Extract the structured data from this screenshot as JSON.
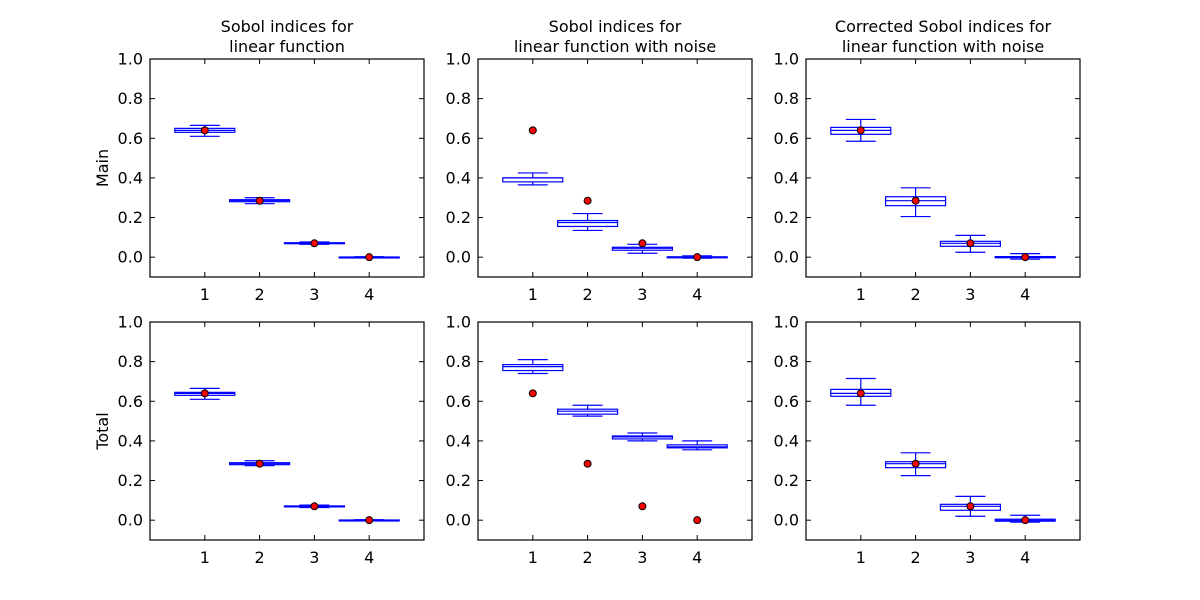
{
  "colors": {
    "box": "#0000ff",
    "truth_fill": "#ff0000",
    "truth_stroke": "#000000",
    "axes": "#000000"
  },
  "columns": [
    {
      "title_lines": [
        "Sobol indices for",
        "linear function"
      ]
    },
    {
      "title_lines": [
        "Sobol indices for",
        "linear function with noise"
      ]
    },
    {
      "title_lines": [
        "Corrected Sobol indices for",
        "linear function with noise"
      ]
    }
  ],
  "rows": [
    {
      "ylabel": "Main"
    },
    {
      "ylabel": "Total"
    }
  ],
  "chart_data": [
    {
      "type": "box",
      "row": 0,
      "col": 0,
      "title": "Sobol indices for\nlinear function",
      "ylabel": "Main",
      "categories": [
        "1",
        "2",
        "3",
        "4"
      ],
      "ylim": [
        -0.1,
        1.0
      ],
      "yticks": [
        "0.0",
        "0.2",
        "0.4",
        "0.6",
        "0.8",
        "1.0"
      ],
      "boxes": [
        {
          "whislo": 0.61,
          "q1": 0.63,
          "med": 0.64,
          "q3": 0.65,
          "whishi": 0.665
        },
        {
          "whislo": 0.27,
          "q1": 0.28,
          "med": 0.285,
          "q3": 0.29,
          "whishi": 0.3
        },
        {
          "whislo": 0.065,
          "q1": 0.068,
          "med": 0.07,
          "q3": 0.073,
          "whishi": 0.077
        },
        {
          "whislo": -0.002,
          "q1": -0.001,
          "med": 0.0,
          "q3": 0.001,
          "whishi": 0.002
        }
      ],
      "true_values": [
        0.64,
        0.285,
        0.07,
        0.0
      ]
    },
    {
      "type": "box",
      "row": 0,
      "col": 1,
      "title": "Sobol indices for\nlinear function with noise",
      "ylabel": "",
      "categories": [
        "1",
        "2",
        "3",
        "4"
      ],
      "ylim": [
        -0.1,
        1.0
      ],
      "yticks": [
        "0.0",
        "0.2",
        "0.4",
        "0.6",
        "0.8",
        "1.0"
      ],
      "boxes": [
        {
          "whislo": 0.365,
          "q1": 0.38,
          "med": 0.4,
          "q3": 0.4,
          "whishi": 0.425
        },
        {
          "whislo": 0.135,
          "q1": 0.155,
          "med": 0.175,
          "q3": 0.185,
          "whishi": 0.22
        },
        {
          "whislo": 0.02,
          "q1": 0.035,
          "med": 0.045,
          "q3": 0.05,
          "whishi": 0.065
        },
        {
          "whislo": -0.005,
          "q1": -0.002,
          "med": 0.0,
          "q3": 0.002,
          "whishi": 0.007
        }
      ],
      "true_values": [
        0.64,
        0.285,
        0.07,
        0.0
      ]
    },
    {
      "type": "box",
      "row": 0,
      "col": 2,
      "title": "Corrected Sobol indices for\nlinear function with noise",
      "ylabel": "",
      "categories": [
        "1",
        "2",
        "3",
        "4"
      ],
      "ylim": [
        -0.1,
        1.0
      ],
      "yticks": [
        "0.0",
        "0.2",
        "0.4",
        "0.6",
        "0.8",
        "1.0"
      ],
      "boxes": [
        {
          "whislo": 0.585,
          "q1": 0.62,
          "med": 0.64,
          "q3": 0.655,
          "whishi": 0.695
        },
        {
          "whislo": 0.205,
          "q1": 0.26,
          "med": 0.285,
          "q3": 0.305,
          "whishi": 0.35
        },
        {
          "whislo": 0.025,
          "q1": 0.055,
          "med": 0.07,
          "q3": 0.08,
          "whishi": 0.11
        },
        {
          "whislo": -0.01,
          "q1": -0.003,
          "med": 0.0,
          "q3": 0.003,
          "whishi": 0.018
        }
      ],
      "true_values": [
        0.64,
        0.285,
        0.07,
        0.0
      ]
    },
    {
      "type": "box",
      "row": 1,
      "col": 0,
      "title": "",
      "ylabel": "Total",
      "categories": [
        "1",
        "2",
        "3",
        "4"
      ],
      "ylim": [
        -0.1,
        1.0
      ],
      "yticks": [
        "0.0",
        "0.2",
        "0.4",
        "0.6",
        "0.8",
        "1.0"
      ],
      "boxes": [
        {
          "whislo": 0.61,
          "q1": 0.63,
          "med": 0.64,
          "q3": 0.645,
          "whishi": 0.665
        },
        {
          "whislo": 0.275,
          "q1": 0.28,
          "med": 0.285,
          "q3": 0.29,
          "whishi": 0.3
        },
        {
          "whislo": 0.064,
          "q1": 0.067,
          "med": 0.07,
          "q3": 0.072,
          "whishi": 0.076
        },
        {
          "whislo": -0.002,
          "q1": -0.001,
          "med": 0.0,
          "q3": 0.001,
          "whishi": 0.002
        }
      ],
      "true_values": [
        0.64,
        0.285,
        0.07,
        0.0
      ]
    },
    {
      "type": "box",
      "row": 1,
      "col": 1,
      "title": "",
      "ylabel": "",
      "categories": [
        "1",
        "2",
        "3",
        "4"
      ],
      "ylim": [
        -0.1,
        1.0
      ],
      "yticks": [
        "0.0",
        "0.2",
        "0.4",
        "0.6",
        "0.8",
        "1.0"
      ],
      "boxes": [
        {
          "whislo": 0.74,
          "q1": 0.755,
          "med": 0.775,
          "q3": 0.785,
          "whishi": 0.81
        },
        {
          "whislo": 0.525,
          "q1": 0.535,
          "med": 0.55,
          "q3": 0.56,
          "whishi": 0.58
        },
        {
          "whislo": 0.4,
          "q1": 0.41,
          "med": 0.42,
          "q3": 0.425,
          "whishi": 0.44
        },
        {
          "whislo": 0.355,
          "q1": 0.365,
          "med": 0.37,
          "q3": 0.38,
          "whishi": 0.4
        }
      ],
      "true_values": [
        0.64,
        0.285,
        0.07,
        0.0
      ]
    },
    {
      "type": "box",
      "row": 1,
      "col": 2,
      "title": "",
      "ylabel": "",
      "categories": [
        "1",
        "2",
        "3",
        "4"
      ],
      "ylim": [
        -0.1,
        1.0
      ],
      "yticks": [
        "0.0",
        "0.2",
        "0.4",
        "0.6",
        "0.8",
        "1.0"
      ],
      "boxes": [
        {
          "whislo": 0.58,
          "q1": 0.625,
          "med": 0.64,
          "q3": 0.66,
          "whishi": 0.715
        },
        {
          "whislo": 0.225,
          "q1": 0.265,
          "med": 0.285,
          "q3": 0.295,
          "whishi": 0.34
        },
        {
          "whislo": 0.02,
          "q1": 0.05,
          "med": 0.07,
          "q3": 0.08,
          "whishi": 0.12
        },
        {
          "whislo": -0.01,
          "q1": -0.005,
          "med": 0.0,
          "q3": 0.005,
          "whishi": 0.025
        }
      ],
      "true_values": [
        0.64,
        0.285,
        0.07,
        0.0
      ]
    }
  ]
}
